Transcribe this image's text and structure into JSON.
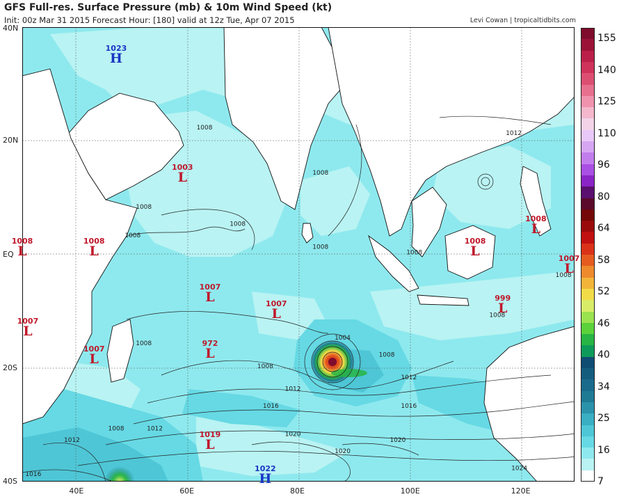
{
  "header": {
    "title": "GFS Full-res. Surface Pressure (mb) & 10m Wind Speed (kt)",
    "subtitle": "Init: 00z Mar 31 2015   Forecast Hour: [180]   valid at 12z Tue, Apr 07 2015",
    "credit": "Levi Cowan | tropicaltidbits.com"
  },
  "map": {
    "lat_labels": [
      "40N",
      "20N",
      "EQ",
      "20S",
      "40S"
    ],
    "lon_labels": [
      "40E",
      "60E",
      "80E",
      "100E",
      "120E"
    ],
    "pressure_systems": [
      {
        "type": "H",
        "value": "1023",
        "lon": 47,
        "lat": 35
      },
      {
        "type": "L",
        "value": "1003",
        "lon": 59,
        "lat": 14
      },
      {
        "type": "L",
        "value": "1008",
        "lon": 30,
        "lat": 1
      },
      {
        "type": "L",
        "value": "1008",
        "lon": 43,
        "lat": 1
      },
      {
        "type": "L",
        "value": "1007",
        "lon": 64,
        "lat": -7
      },
      {
        "type": "L",
        "value": "1007",
        "lon": 76,
        "lat": -10
      },
      {
        "type": "L",
        "value": "1007",
        "lon": 31,
        "lat": -13
      },
      {
        "type": "L",
        "value": "1007",
        "lon": 43,
        "lat": -18
      },
      {
        "type": "L",
        "value": "972",
        "lon": 64,
        "lat": -17
      },
      {
        "type": "L",
        "value": "1019",
        "lon": 64,
        "lat": -33
      },
      {
        "type": "H",
        "value": "1022",
        "lon": 74,
        "lat": -39
      },
      {
        "type": "L",
        "value": "1008",
        "lon": 112,
        "lat": 1
      },
      {
        "type": "L",
        "value": "1008",
        "lon": 123,
        "lat": 5
      },
      {
        "type": "L",
        "value": "999",
        "lon": 117,
        "lat": -9
      },
      {
        "type": "L",
        "value": "1007",
        "lon": 129,
        "lat": -2
      }
    ],
    "isobar_labels": [
      {
        "value": "1008",
        "lon": 63,
        "lat": 22
      },
      {
        "value": "1008",
        "lon": 52,
        "lat": 8
      },
      {
        "value": "1008",
        "lon": 50,
        "lat": 3
      },
      {
        "value": "1008",
        "lon": 69,
        "lat": 5
      },
      {
        "value": "1008",
        "lon": 84,
        "lat": 14
      },
      {
        "value": "1008",
        "lon": 84,
        "lat": 1
      },
      {
        "value": "1008",
        "lon": 101,
        "lat": 0
      },
      {
        "value": "1008",
        "lon": 52,
        "lat": -16
      },
      {
        "value": "1008",
        "lon": 74,
        "lat": -20
      },
      {
        "value": "1008",
        "lon": 96,
        "lat": -18
      },
      {
        "value": "1008",
        "lon": 116,
        "lat": -11
      },
      {
        "value": "1008",
        "lon": 128,
        "lat": -4
      },
      {
        "value": "1008",
        "lon": 47,
        "lat": -31
      },
      {
        "value": "1004",
        "lon": 88,
        "lat": -15
      },
      {
        "value": "1012",
        "lon": 79,
        "lat": -24
      },
      {
        "value": "1012",
        "lon": 100,
        "lat": -22
      },
      {
        "value": "1012",
        "lon": 119,
        "lat": 21
      },
      {
        "value": "1012",
        "lon": 39,
        "lat": -33
      },
      {
        "value": "1012",
        "lon": 54,
        "lat": -31
      },
      {
        "value": "1016",
        "lon": 75,
        "lat": -27
      },
      {
        "value": "1016",
        "lon": 100,
        "lat": -27
      },
      {
        "value": "1016",
        "lon": 32,
        "lat": -39
      },
      {
        "value": "1020",
        "lon": 79,
        "lat": -32
      },
      {
        "value": "1020",
        "lon": 98,
        "lat": -33
      },
      {
        "value": "1020",
        "lon": 88,
        "lat": -35
      },
      {
        "value": "1024",
        "lon": 120,
        "lat": -38
      }
    ]
  },
  "colorbar": {
    "labels": [
      "155",
      "140",
      "125",
      "110",
      "96",
      "80",
      "64",
      "58",
      "52",
      "46",
      "40",
      "34",
      "25",
      "16",
      "7"
    ],
    "colors": [
      "#ffffff",
      "#b9f3f3",
      "#8ee9ee",
      "#66d9e4",
      "#4ec6d6",
      "#3aaec3",
      "#2b92ab",
      "#1f7a94",
      "#1a6a8b",
      "#145c7e",
      "#0f4d73",
      "#0d9a5a",
      "#28b545",
      "#5bd23a",
      "#9be24f",
      "#d9ec68",
      "#f1dc48",
      "#f2b53a",
      "#ee8a2c",
      "#e65c20",
      "#d93219",
      "#c01010",
      "#9a0b0b",
      "#740707",
      "#5a0a2a",
      "#5a0f6e",
      "#8a24c6",
      "#a94fe4",
      "#c27ded",
      "#d6a6f2",
      "#e8c8f7",
      "#f2d3e8",
      "#f4b7cc",
      "#f092ae",
      "#e7708f",
      "#dc4f72",
      "#cf335c",
      "#ba1f49",
      "#9b1438",
      "#7f0c2c"
    ]
  }
}
